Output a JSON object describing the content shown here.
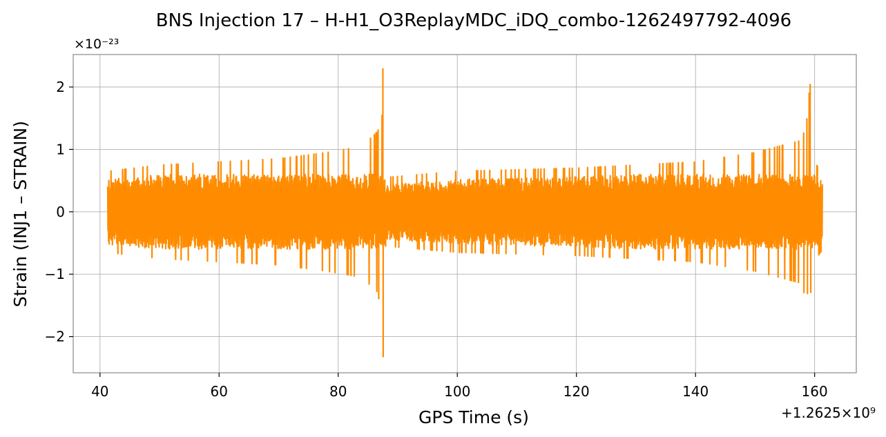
{
  "chart_data": {
    "type": "line",
    "title": "BNS Injection 17 – H-H1_O3ReplayMDC_iDQ_combo-1262497792-4096",
    "xlabel": "GPS Time (s)",
    "ylabel": "Strain (INJ1 – STRAIN)",
    "x_offset_label": "+1.2625×10⁹",
    "y_scale_label": "×10⁻²³",
    "xlim": [
      35.5,
      167.0
    ],
    "ylim": [
      -2.58,
      2.52
    ],
    "xticks": [
      40,
      60,
      80,
      100,
      120,
      140,
      160
    ],
    "xtick_labels": [
      "40",
      "60",
      "80",
      "100",
      "120",
      "140",
      "160"
    ],
    "yticks": [
      -2,
      -1,
      0,
      1,
      2
    ],
    "ytick_labels": [
      "−2",
      "−1",
      "0",
      "1",
      "2"
    ],
    "grid": true,
    "series": [
      {
        "color": "#ff8c00",
        "x_range": [
          41.3,
          161.3
        ],
        "baseline_band": 0.6,
        "envelope": [
          {
            "x": 41.3,
            "amp": 0.65
          },
          {
            "x": 50.0,
            "amp": 0.75
          },
          {
            "x": 60.0,
            "amp": 0.8
          },
          {
            "x": 70.0,
            "amp": 0.85
          },
          {
            "x": 78.0,
            "amp": 0.95
          },
          {
            "x": 84.0,
            "amp": 1.05
          },
          {
            "x": 87.3,
            "amp": 1.35
          },
          {
            "x": 87.6,
            "amp": 2.3
          },
          {
            "x": 87.9,
            "amp": 0.55
          },
          {
            "x": 100.0,
            "amp": 0.65
          },
          {
            "x": 120.0,
            "amp": 0.7
          },
          {
            "x": 140.0,
            "amp": 0.8
          },
          {
            "x": 150.0,
            "amp": 0.95
          },
          {
            "x": 158.0,
            "amp": 1.15
          },
          {
            "x": 159.3,
            "amp": 2.05
          },
          {
            "x": 160.0,
            "amp": 0.8
          },
          {
            "x": 161.3,
            "amp": 0.6
          }
        ]
      }
    ]
  }
}
